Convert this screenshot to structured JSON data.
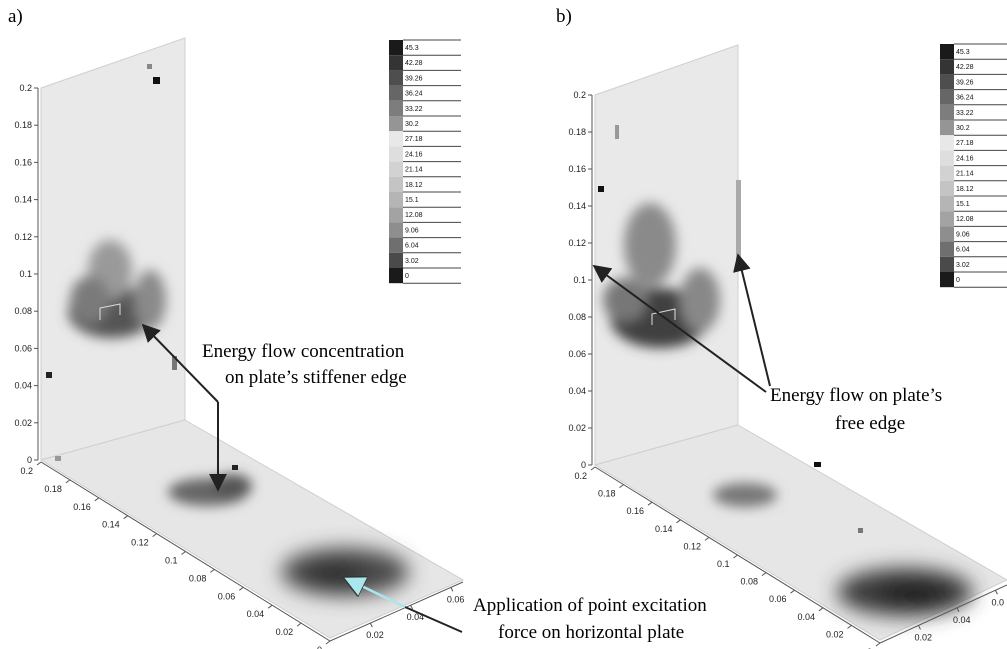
{
  "panels": [
    {
      "label": "a)",
      "vertical_ticks": [
        "0",
        "0.02",
        "0.04",
        "0.06",
        "0.08",
        "0.1",
        "0.12",
        "0.14",
        "0.16",
        "0.18",
        "0.2"
      ],
      "depth_ticks": [
        "0.2",
        "0.18",
        "0.16",
        "0.14",
        "0.12",
        "0.1",
        "0.08",
        "0.06",
        "0.04",
        "0.02",
        "0"
      ],
      "width_ticks": [
        "0.02",
        "0.04",
        "0.06"
      ],
      "legend": [
        "45.3",
        "42.28",
        "39.26",
        "36.24",
        "33.22",
        "30.2",
        "27.18",
        "24.16",
        "21.14",
        "18.12",
        "15.1",
        "12.08",
        "9.06",
        "6.04",
        "3.02",
        "0"
      ],
      "annotations": [
        {
          "lines": [
            "Energy flow concentration",
            "on plate’s stiffener edge"
          ]
        },
        {
          "lines": [
            "Application of point excitation",
            "force on horizontal plate"
          ]
        }
      ]
    },
    {
      "label": "b)",
      "vertical_ticks": [
        "0",
        "0.02",
        "0.04",
        "0.06",
        "0.08",
        "0.1",
        "0.12",
        "0.14",
        "0.16",
        "0.18",
        "0.2"
      ],
      "depth_ticks": [
        "0.2",
        "0.18",
        "0.16",
        "0.14",
        "0.12",
        "0.1",
        "0.08",
        "0.06",
        "0.04",
        "0.02",
        "0"
      ],
      "width_ticks": [
        "0.02",
        "0.04",
        "0.0"
      ],
      "legend": [
        "45.3",
        "42.28",
        "39.26",
        "36.24",
        "33.22",
        "30.2",
        "27.18",
        "24.16",
        "21.14",
        "18.12",
        "15.1",
        "12.08",
        "9.06",
        "6.04",
        "3.02",
        "0"
      ],
      "annotations": [
        {
          "lines": [
            "Energy flow on plate’s",
            "free edge"
          ]
        }
      ]
    }
  ],
  "legend_colors": [
    "#1a1a1a",
    "#343434",
    "#4e4e4e",
    "#666666",
    "#7d7d7d",
    "#959595",
    "#e8e8e8",
    "#dedede",
    "#d2d2d2",
    "#c4c4c4",
    "#b5b5b5",
    "#a3a3a3",
    "#8e8e8e",
    "#6f6f6f",
    "#4a4a4a",
    "#1a1a1a"
  ]
}
